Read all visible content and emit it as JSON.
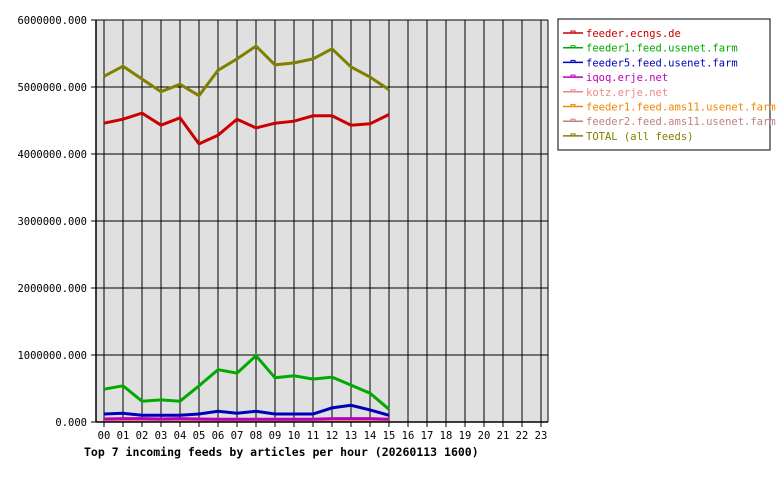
{
  "chart_data": {
    "type": "line",
    "title": "Top 7 incoming feeds by articles per hour (20260113 1600)",
    "xlabel": "",
    "ylabel": "",
    "ylim": [
      0,
      6000000
    ],
    "y_ticks": [
      "0.000",
      "1000000.000",
      "2000000.000",
      "3000000.000",
      "4000000.000",
      "5000000.000",
      "6000000.000"
    ],
    "y_tick_values": [
      0,
      1000000,
      2000000,
      3000000,
      4000000,
      5000000,
      6000000
    ],
    "categories": [
      "00",
      "01",
      "02",
      "03",
      "04",
      "05",
      "06",
      "07",
      "08",
      "09",
      "10",
      "11",
      "12",
      "13",
      "14",
      "15",
      "16",
      "17",
      "18",
      "19",
      "20",
      "21",
      "22",
      "23"
    ],
    "grid": true,
    "legend_position": "right",
    "background": "#e0e0e0",
    "series": [
      {
        "name": "feeder.ecngs.de",
        "color": "#cc0000",
        "values": [
          4460000,
          4520000,
          4610000,
          4430000,
          4540000,
          4150000,
          4280000,
          4520000,
          4390000,
          4460000,
          4490000,
          4570000,
          4570000,
          4430000,
          4450000,
          4590000
        ]
      },
      {
        "name": "feeder1.feed.usenet.farm",
        "color": "#00aa00",
        "values": [
          490000,
          540000,
          310000,
          330000,
          310000,
          540000,
          780000,
          730000,
          990000,
          660000,
          690000,
          640000,
          670000,
          550000,
          430000,
          190000
        ]
      },
      {
        "name": "feeder5.feed.usenet.farm",
        "color": "#0000bb",
        "values": [
          120000,
          130000,
          100000,
          100000,
          100000,
          120000,
          160000,
          130000,
          160000,
          120000,
          120000,
          120000,
          210000,
          250000,
          180000,
          100000
        ]
      },
      {
        "name": "iqoq.erje.net",
        "color": "#bb00bb",
        "values": [
          45000,
          50000,
          50000,
          45000,
          50000,
          45000,
          40000,
          40000,
          40000,
          40000,
          40000,
          40000,
          50000,
          50000,
          50000,
          40000
        ]
      },
      {
        "name": "kotz.erje.net",
        "color": "#ee8888",
        "values": [
          25000,
          25000,
          25000,
          25000,
          25000,
          30000,
          25000,
          25000,
          25000,
          25000,
          20000,
          25000,
          25000,
          25000,
          25000,
          25000
        ]
      },
      {
        "name": "feeder1.feed.ams11.usenet.farm",
        "color": "#ee8800",
        "values": [
          40000,
          30000,
          30000,
          30000,
          30000,
          35000,
          30000,
          30000,
          40000,
          30000,
          30000,
          30000,
          30000,
          30000,
          30000,
          35000
        ]
      },
      {
        "name": "feeder2.feed.ams11.usenet.farm",
        "color": "#c08080",
        "values": [
          20000,
          20000,
          20000,
          20000,
          20000,
          20000,
          20000,
          20000,
          20000,
          20000,
          20000,
          20000,
          20000,
          20000,
          20000,
          20000
        ]
      },
      {
        "name": "TOTAL (all feeds)",
        "color": "#808000",
        "values": [
          5160000,
          5310000,
          5120000,
          4930000,
          5040000,
          4870000,
          5250000,
          5420000,
          5610000,
          5330000,
          5360000,
          5420000,
          5570000,
          5300000,
          5150000,
          4960000
        ]
      }
    ]
  }
}
